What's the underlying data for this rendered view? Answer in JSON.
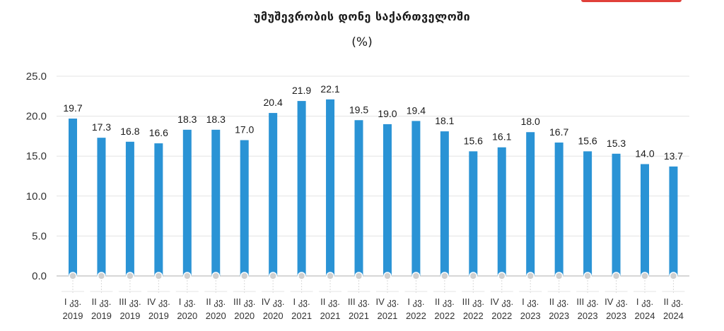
{
  "header": {
    "title": "უმუშევრობის დონე საქართველოში",
    "subtitle": "(%)"
  },
  "colors": {
    "bar": "#2a93d5",
    "grid": "#e3e3e3",
    "marker": "#cfcfcf",
    "accent": "#e0403a"
  },
  "chart_data": {
    "type": "bar",
    "title": "უმუშევრობის დონე საქართველოში",
    "ylabel": "(%)",
    "ylim": [
      0,
      25
    ],
    "yticks": [
      "0.0",
      "5.0",
      "10.0",
      "15.0",
      "20.0",
      "25.0"
    ],
    "grid": true,
    "categories": [
      [
        "I კვ.",
        "2019"
      ],
      [
        "II კვ.",
        "2019"
      ],
      [
        "III კვ.",
        "2019"
      ],
      [
        "IV კვ.",
        "2019"
      ],
      [
        "I კვ.",
        "2020"
      ],
      [
        "II კვ.",
        "2020"
      ],
      [
        "III კვ.",
        "2020"
      ],
      [
        "IV კვ.",
        "2020"
      ],
      [
        "I კვ.",
        "2021"
      ],
      [
        "II კვ.",
        "2021"
      ],
      [
        "III კვ.",
        "2021"
      ],
      [
        "IV კვ.",
        "2021"
      ],
      [
        "I კვ.",
        "2022"
      ],
      [
        "II კვ.",
        "2022"
      ],
      [
        "III კვ.",
        "2022"
      ],
      [
        "IV კვ.",
        "2022"
      ],
      [
        "I კვ.",
        "2023"
      ],
      [
        "II კვ.",
        "2023"
      ],
      [
        "III კვ.",
        "2023"
      ],
      [
        "IV კვ.",
        "2023"
      ],
      [
        "I კვ.",
        "2024"
      ],
      [
        "II კვ.",
        "2024"
      ]
    ],
    "values": [
      19.7,
      17.3,
      16.8,
      16.6,
      18.3,
      18.3,
      17.0,
      20.4,
      21.9,
      22.1,
      19.5,
      19.0,
      19.4,
      18.1,
      15.6,
      16.1,
      18.0,
      16.7,
      15.6,
      15.3,
      14.0,
      13.7
    ],
    "value_labels": [
      "19.7",
      "17.3",
      "16.8",
      "16.6",
      "18.3",
      "18.3",
      "17.0",
      "20.4",
      "21.9",
      "22.1",
      "19.5",
      "19.0",
      "19.4",
      "18.1",
      "15.6",
      "16.1",
      "18.0",
      "16.7",
      "15.6",
      "15.3",
      "14.0",
      "13.7"
    ]
  }
}
